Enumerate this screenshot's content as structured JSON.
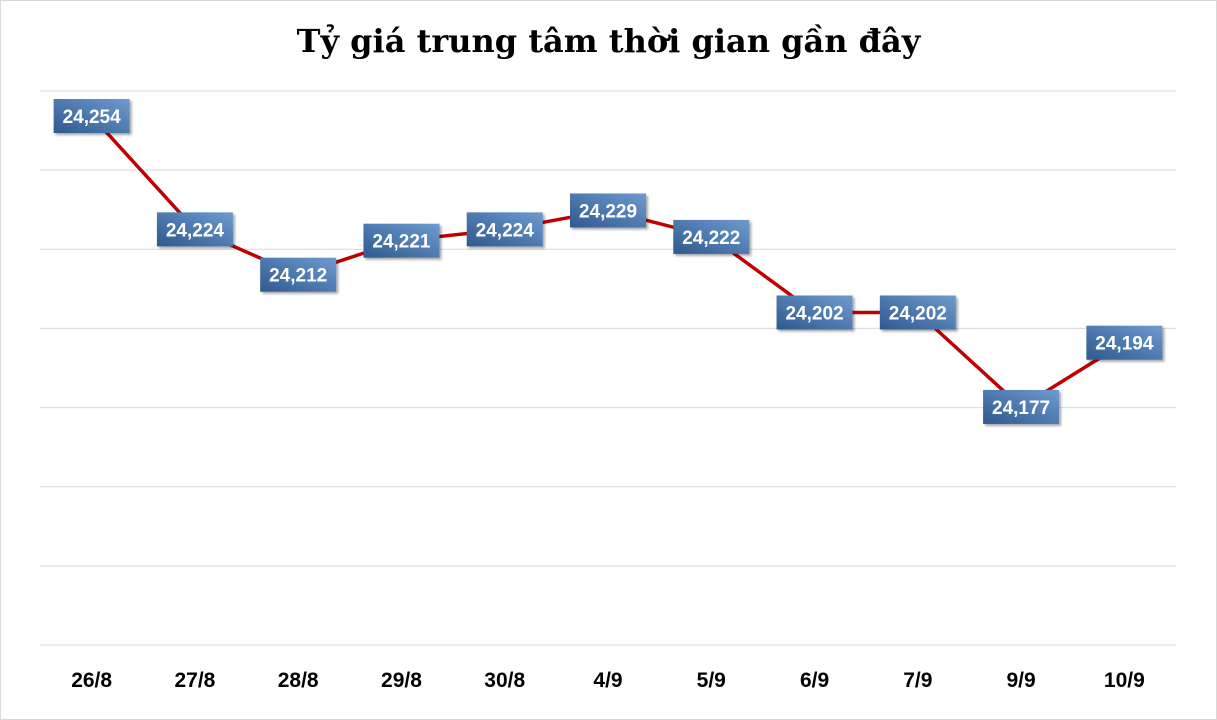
{
  "chart_data": {
    "type": "line",
    "title": "Tỷ giá trung tâm thời gian gần đây",
    "xlabel": "",
    "ylabel": "",
    "categories": [
      "26/8",
      "27/8",
      "28/8",
      "29/8",
      "30/8",
      "4/9",
      "5/9",
      "6/9",
      "7/9",
      "9/9",
      "10/9"
    ],
    "series": [
      {
        "values": [
          24254,
          24224,
          24212,
          24221,
          24224,
          24229,
          24222,
          24202,
          24202,
          24177,
          24194
        ],
        "data_labels": [
          "24,254",
          "24,224",
          "24,212",
          "24,221",
          "24,224",
          "24,229",
          "24,222",
          "24,202",
          "24,202",
          "24,177",
          "24,194"
        ],
        "color": "#c00000"
      }
    ],
    "ylim": [
      24114,
      24254
    ],
    "grid": true,
    "legend": "none",
    "label_fill_start": "#2e5a8e",
    "label_fill_end": "#6e9ad0"
  }
}
